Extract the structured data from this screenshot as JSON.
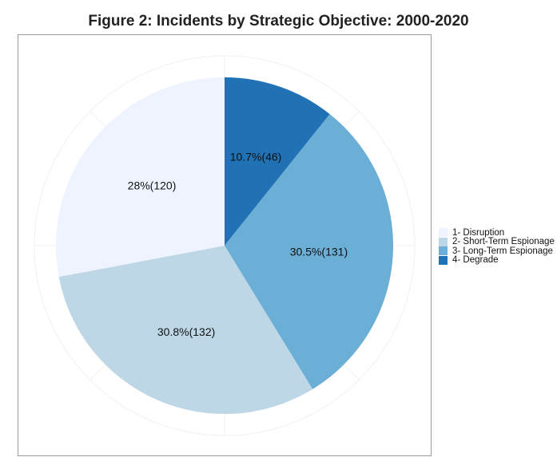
{
  "chart_data": {
    "type": "pie",
    "title": "Figure 2: Incidents by Strategic Objective: 2000-2020",
    "start": "12 o'clock, clockwise",
    "slices": [
      {
        "name": "4- Degrade",
        "value": 46,
        "percent": 10.7,
        "label": "10.7%(46)",
        "color": "#2171B5"
      },
      {
        "name": "3- Long-Term Espionage",
        "value": 131,
        "percent": 30.5,
        "label": "30.5%(131)",
        "color": "#6BAED6"
      },
      {
        "name": "2- Short-Term Espionage",
        "value": 132,
        "percent": 30.8,
        "label": "30.8%(132)",
        "color": "#BDD7E7"
      },
      {
        "name": "1- Disruption",
        "value": 120,
        "percent": 28,
        "label": "28%(120)",
        "color": "#EFF3FF"
      }
    ],
    "legend": {
      "placement": "right",
      "entries": [
        {
          "label": "1- Disruption",
          "color": "#EFF3FF"
        },
        {
          "label": "2- Short-Term Espionage",
          "color": "#BDD7E7"
        },
        {
          "label": "3- Long-Term Espionage",
          "color": "#6BAED6"
        },
        {
          "label": "4- Degrade",
          "color": "#2171B5"
        }
      ]
    }
  }
}
